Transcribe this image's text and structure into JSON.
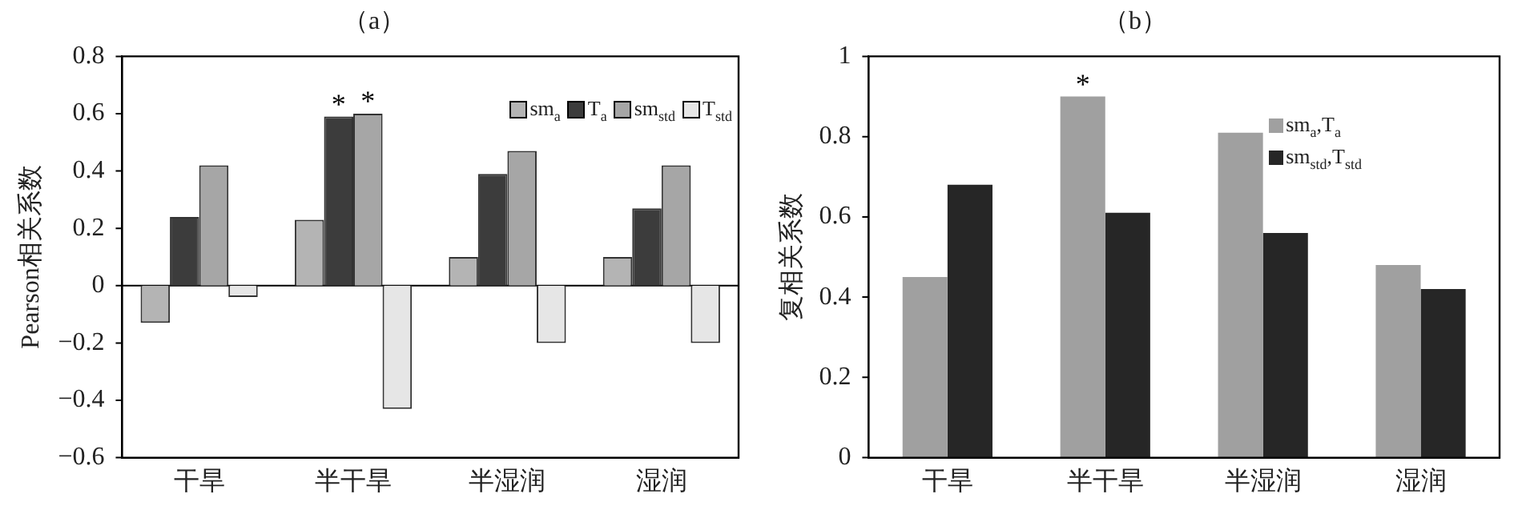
{
  "chart_data": [
    {
      "type": "bar",
      "title": "（a）",
      "ylabel": "Pearson相关系数",
      "categories": [
        "干旱",
        "半干旱",
        "半湿润",
        "湿润"
      ],
      "series": [
        {
          "name": "sm$_{a}$",
          "color": "#b4b4b4",
          "values": [
            -0.13,
            0.23,
            0.1,
            0.1
          ]
        },
        {
          "name": "T$_{a}$",
          "color": "#3c3c3c",
          "values": [
            0.24,
            0.59,
            0.39,
            0.27
          ]
        },
        {
          "name": "sm$_{std}$",
          "color": "#a6a6a6",
          "values": [
            0.42,
            0.6,
            0.47,
            0.42
          ]
        },
        {
          "name": "T$_{std}$",
          "color": "#e6e6e6",
          "values": [
            -0.04,
            -0.43,
            -0.2,
            -0.2
          ]
        }
      ],
      "ylim": [
        -0.6,
        0.8
      ],
      "yticks": [
        -0.6,
        -0.4,
        -0.2,
        0,
        0.2,
        0.4,
        0.6,
        0.8
      ],
      "grid": false,
      "legend": "top right",
      "ref_lines": [
        {
          "axis": "y",
          "value": 0,
          "color": "#000000"
        }
      ],
      "annotations": [
        {
          "text": "*",
          "x": "半干旱",
          "y": 0.59
        },
        {
          "text": "*",
          "x": "半干旱",
          "y": 0.6
        }
      ]
    },
    {
      "type": "bar",
      "title": "（b）",
      "ylabel": "复相关系数",
      "categories": [
        "干旱",
        "半干旱",
        "半湿润",
        "湿润"
      ],
      "series": [
        {
          "name": "sm$_{a}$,T$_{a}$",
          "color": "#a0a0a0",
          "values": [
            0.45,
            0.9,
            0.81,
            0.48
          ]
        },
        {
          "name": "sm$_{std}$,T$_{std}$",
          "color": "#262626",
          "values": [
            0.68,
            0.61,
            0.56,
            0.42
          ]
        }
      ],
      "ylim": [
        0,
        1
      ],
      "yticks": [
        0,
        0.2,
        0.4,
        0.6,
        0.8,
        1
      ],
      "grid": false,
      "legend": "top right",
      "annotations": [
        {
          "text": "*",
          "x": "半干旱",
          "y": 0.9
        }
      ]
    }
  ]
}
